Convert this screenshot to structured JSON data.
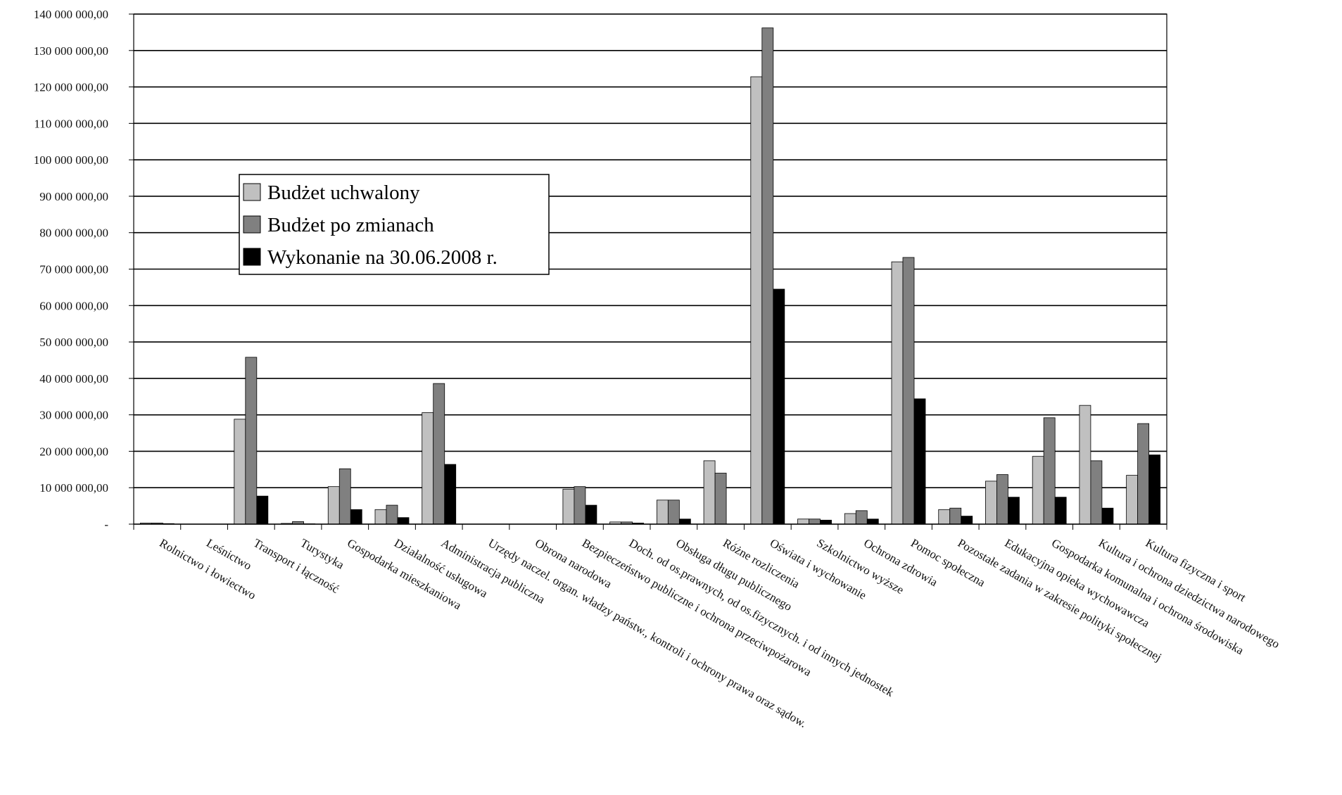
{
  "chart_data": {
    "type": "bar",
    "title": "",
    "xlabel": "",
    "ylabel": "",
    "ylim": [
      0,
      140000000
    ],
    "grid": true,
    "legend_position": "upper-left",
    "ytick_labels": [
      "-",
      "10 000 000,00",
      "20 000 000,00",
      "30 000 000,00",
      "40 000 000,00",
      "50 000 000,00",
      "60 000 000,00",
      "70 000 000,00",
      "80 000 000,00",
      "90 000 000,00",
      "100 000 000,00",
      "110 000 000,00",
      "120 000 000,00",
      "130 000 000,00",
      "140 000 000,00"
    ],
    "categories": [
      "Rolnictwo i łowiectwo",
      "Leśnictwo",
      "Transport i łączność",
      "Turystyka",
      "Gospodarka mieszkaniowa",
      "Działalność usługowa",
      "Administracja publiczna",
      "Urzędy naczel. organ. władzy państw., kontroli i ochrony prawa oraz sądow.",
      "Obrona narodowa",
      "Bezpieczeństwo publiczne i ochrona przeciwpożarowa",
      "Doch. od os.prawnych, od os.fizycznych. i od innych jednostek",
      "Obsługa długu publicznego",
      "Różne rozliczenia",
      "Oświata i wychowanie",
      "Szkolnictwo wyższe",
      "Ochrona zdrowia",
      "Pomoc społeczna",
      "Pozostałe zadania w zakresie polityki społecznej",
      "Edukacyjna opieka wychowawcza",
      "Gospodarka komunalna i ochrona środowiska",
      "Kultura i ochrona dziedzictwa narodowego",
      "Kultura fizyczna i sport"
    ],
    "series": [
      {
        "name": "Budżet uchwalony",
        "color": "#c0c0c0",
        "values": [
          300000,
          0,
          28800000,
          200000,
          10300000,
          4000000,
          30600000,
          0,
          0,
          9600000,
          600000,
          6600000,
          17400000,
          122800000,
          1400000,
          2900000,
          72000000,
          4000000,
          11800000,
          18600000,
          32600000,
          13400000
        ]
      },
      {
        "name": "Budżet po zmianach",
        "color": "#808080",
        "values": [
          300000,
          0,
          45800000,
          700000,
          15200000,
          5200000,
          38600000,
          0,
          0,
          10300000,
          600000,
          6600000,
          14000000,
          136200000,
          1400000,
          3700000,
          73200000,
          4400000,
          13600000,
          29200000,
          17400000,
          27600000
        ]
      },
      {
        "name": "Wykonanie na 30.06.2008 r.",
        "color": "#000000",
        "values": [
          150000,
          0,
          7700000,
          100000,
          4000000,
          1800000,
          16400000,
          0,
          0,
          5200000,
          300000,
          1400000,
          0,
          64500000,
          1100000,
          1400000,
          34400000,
          2200000,
          7400000,
          7400000,
          4400000,
          19000000
        ]
      }
    ]
  }
}
